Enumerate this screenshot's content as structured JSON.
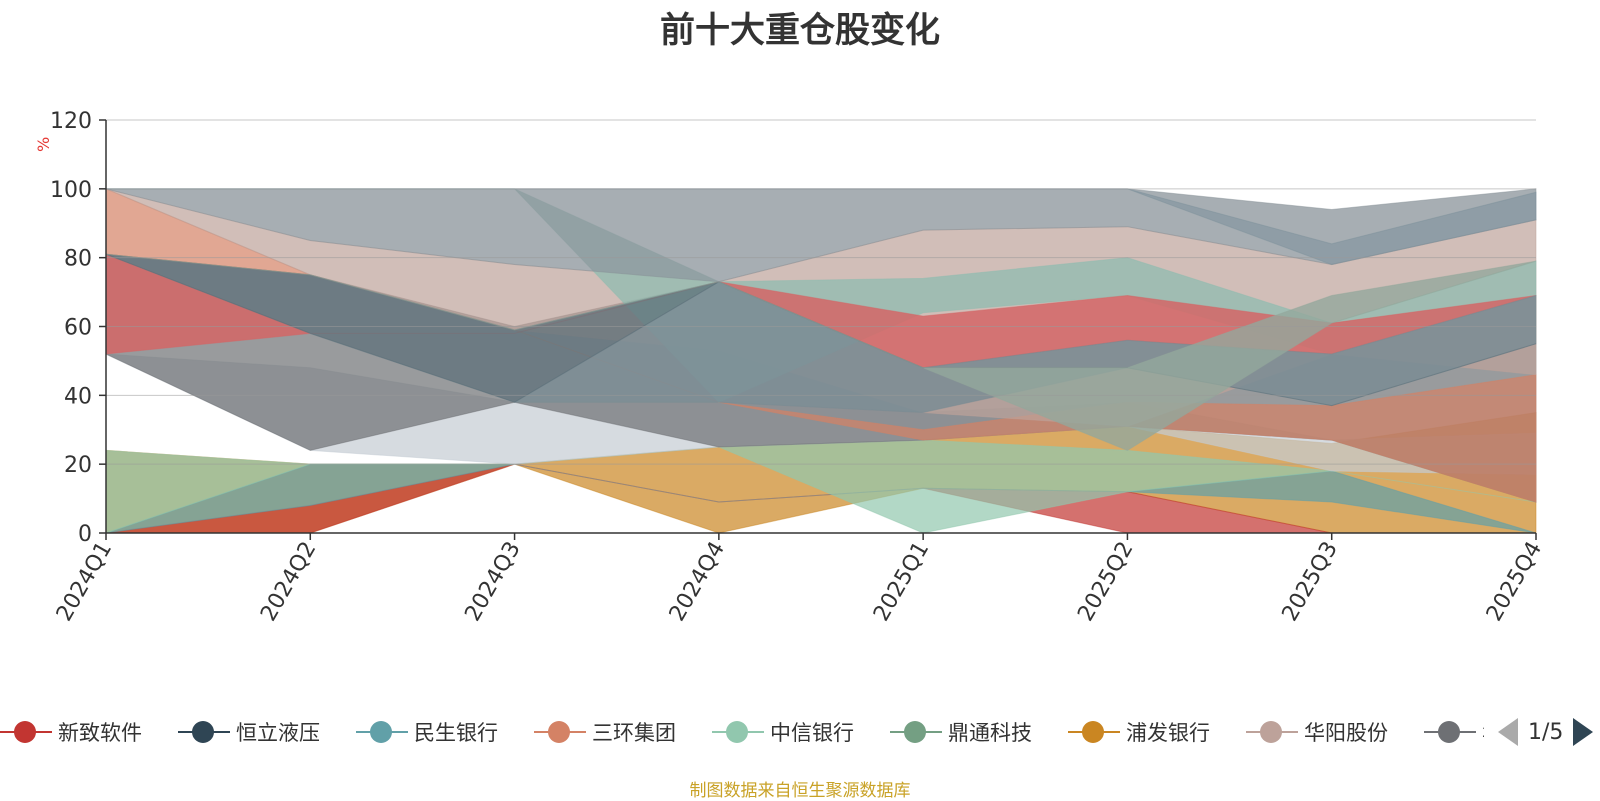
{
  "chart_data": {
    "type": "area",
    "title": "前十大重仓股变化",
    "ylabel": "%",
    "ylim": [
      0,
      120
    ],
    "yticks": [
      "0",
      "20",
      "40",
      "60",
      "80",
      "100",
      "120"
    ],
    "categories": [
      "2024Q1",
      "2024Q2",
      "2024Q3",
      "2024Q4",
      "2025Q1",
      "2025Q2",
      "2025Q3",
      "2025Q4"
    ],
    "grid": true,
    "legend_position": "bottom",
    "bands": [
      {
        "color": "#ca8622",
        "opacity": 0.7,
        "upper": [
          24,
          20,
          20,
          25,
          27,
          31,
          26,
          35
        ],
        "lower": [
          0,
          0,
          20,
          0,
          13,
          12,
          0,
          0
        ]
      },
      {
        "color": "#c23531",
        "opacity": 0.7,
        "upper": [
          0,
          8,
          20,
          9,
          13,
          12,
          0,
          0
        ],
        "lower": [
          0,
          0,
          20,
          9,
          13,
          0,
          0,
          0
        ]
      },
      {
        "color": "#61a0a8",
        "opacity": 0.7,
        "upper": [
          0,
          20,
          20,
          9,
          13,
          12,
          18,
          0
        ],
        "lower": [
          0,
          8,
          20,
          9,
          13,
          12,
          9,
          0
        ]
      },
      {
        "color": "#91c7ae",
        "opacity": 0.7,
        "upper": [
          24,
          20,
          20,
          25,
          27,
          24,
          18,
          9
        ],
        "lower": [
          0,
          20,
          20,
          25,
          0,
          12,
          18,
          9
        ]
      },
      {
        "color": "#c4ccd3",
        "opacity": 0.7,
        "upper": [
          52,
          48,
          38,
          38,
          35,
          38,
          27,
          29
        ],
        "lower": [
          52,
          24,
          20,
          25,
          27,
          31,
          18,
          17
        ]
      },
      {
        "color": "#6e7074",
        "opacity": 0.7,
        "upper": [
          81,
          75,
          60,
          73,
          48,
          56,
          52,
          69
        ],
        "lower": [
          52,
          24,
          38,
          25,
          27,
          31,
          27,
          9
        ]
      },
      {
        "color": "#d48265",
        "opacity": 0.7,
        "upper": [
          100,
          75,
          59,
          38,
          30,
          38,
          37,
          46
        ],
        "lower": [
          81,
          75,
          59,
          38,
          27,
          31,
          27,
          9
        ]
      },
      {
        "color": "#bda29a",
        "opacity": 0.7,
        "upper": [
          100,
          85,
          78,
          73,
          88,
          89,
          78,
          91
        ],
        "lower": [
          100,
          75,
          59,
          53,
          35,
          31,
          52,
          46
        ]
      },
      {
        "color": "#8fbbb0",
        "opacity": 0.75,
        "upper": [
          100,
          100,
          100,
          73,
          74,
          80,
          61,
          79
        ],
        "lower": [
          100,
          100,
          100,
          38,
          64,
          69,
          52,
          69
        ]
      },
      {
        "color": "#d36666",
        "opacity": 0.85,
        "upper": [
          81,
          58,
          58,
          73,
          63,
          69,
          61,
          69
        ],
        "lower": [
          52,
          58,
          58,
          73,
          48,
          56,
          52,
          69
        ]
      },
      {
        "color": "#7a8c94",
        "opacity": 0.85,
        "upper": [
          81,
          58,
          38,
          73,
          48,
          56,
          52,
          69
        ],
        "lower": [
          81,
          58,
          38,
          38,
          35,
          48,
          37,
          55
        ]
      },
      {
        "color": "#5a6e78",
        "opacity": 0.7,
        "upper": [
          81,
          75,
          59,
          73,
          48,
          48,
          37,
          55
        ],
        "lower": [
          81,
          58,
          38,
          73,
          48,
          48,
          37,
          55
        ]
      },
      {
        "color": "#94a89c",
        "opacity": 0.8,
        "upper": [
          81,
          75,
          59,
          73,
          48,
          48,
          69,
          79
        ],
        "lower": [
          81,
          75,
          59,
          73,
          48,
          24,
          61,
          79
        ]
      },
      {
        "color": "#8a9399",
        "opacity": 0.75,
        "upper": [
          100,
          100,
          100,
          100,
          100,
          100,
          94,
          100
        ],
        "lower": [
          100,
          85,
          78,
          73,
          88,
          89,
          78,
          91
        ]
      },
      {
        "color": "#7e919c",
        "opacity": 0.6,
        "upper": [
          100,
          100,
          100,
          100,
          100,
          100,
          84,
          99
        ],
        "lower": [
          100,
          100,
          100,
          100,
          100,
          100,
          78,
          91
        ]
      }
    ],
    "series": [
      {
        "name": "新致软件",
        "color": "#c23531"
      },
      {
        "name": "恒立液压",
        "color": "#2f4554"
      },
      {
        "name": "民生银行",
        "color": "#61a0a8"
      },
      {
        "name": "三环集团",
        "color": "#d48265"
      },
      {
        "name": "中信银行",
        "color": "#91c7ae"
      },
      {
        "name": "鼎通科技",
        "color": "#749f83"
      },
      {
        "name": "浦发银行",
        "color": "#ca8622"
      },
      {
        "name": "华阳股份",
        "color": "#bda29a"
      },
      {
        "name": "华",
        "color": "#6e7074"
      }
    ]
  },
  "legend": {
    "page_text": "1/5"
  },
  "footer": {
    "source_note": "制图数据来自恒生聚源数据库"
  }
}
